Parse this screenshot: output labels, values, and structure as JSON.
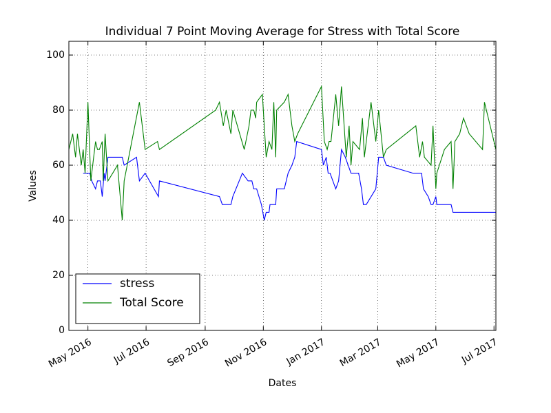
{
  "chart_data": {
    "type": "line",
    "title": "Individual 7 Point Moving Average for Stress with Total Score",
    "x_label": "Dates",
    "y_label": "Values",
    "xlim": [
      "2016-04-11",
      "2017-07-03"
    ],
    "xticks": [
      {
        "value": "2016-05-01",
        "label": "May 2016"
      },
      {
        "value": "2016-07-01",
        "label": "Jul 2016"
      },
      {
        "value": "2016-09-01",
        "label": "Sep 2016"
      },
      {
        "value": "2016-11-01",
        "label": "Nov 2016"
      },
      {
        "value": "2017-01-01",
        "label": "Jan 2017"
      },
      {
        "value": "2017-03-01",
        "label": "Mar 2017"
      },
      {
        "value": "2017-05-01",
        "label": "May 2017"
      },
      {
        "value": "2017-07-01",
        "label": "Jul 2017"
      }
    ],
    "ylim": [
      0,
      105
    ],
    "yticks": [
      0,
      20,
      40,
      60,
      80,
      100
    ],
    "grid": true,
    "legend": "lower left",
    "series": [
      {
        "name": "stress",
        "color": "#0000ff",
        "x": [
          "2016-04-26",
          "2016-05-03",
          "2016-05-05",
          "2016-05-09",
          "2016-05-11",
          "2016-05-14",
          "2016-05-16",
          "2016-05-18",
          "2016-05-19",
          "2016-05-22",
          "2016-06-06",
          "2016-06-08",
          "2016-06-21",
          "2016-06-24",
          "2016-06-30",
          "2016-07-14",
          "2016-07-15",
          "2016-09-16",
          "2016-09-19",
          "2016-09-28",
          "2016-09-30",
          "2016-10-10",
          "2016-10-16",
          "2016-10-20",
          "2016-10-22",
          "2016-10-25",
          "2016-10-30",
          "2016-11-02",
          "2016-11-04",
          "2016-11-07",
          "2016-11-08",
          "2016-11-14",
          "2016-11-15",
          "2016-11-23",
          "2016-11-27",
          "2016-12-01",
          "2016-12-04",
          "2016-12-06",
          "2017-01-01",
          "2017-01-03",
          "2017-01-06",
          "2017-01-08",
          "2017-01-10",
          "2017-01-16",
          "2017-01-19",
          "2017-01-22",
          "2017-01-26",
          "2017-01-29",
          "2017-02-01",
          "2017-02-09",
          "2017-02-12",
          "2017-02-14",
          "2017-02-17",
          "2017-02-27",
          "2017-03-02",
          "2017-03-07",
          "2017-03-10",
          "2017-04-07",
          "2017-04-16",
          "2017-04-18",
          "2017-04-23",
          "2017-04-26",
          "2017-04-28",
          "2017-05-01",
          "2017-05-02",
          "2017-05-17",
          "2017-05-19",
          "2017-07-03"
        ],
        "values": [
          57.1,
          57.1,
          54.3,
          51.4,
          54.3,
          54.3,
          48.6,
          57.1,
          54.3,
          62.9,
          62.9,
          60,
          62.9,
          54.3,
          57.1,
          48.6,
          54.3,
          48.6,
          45.7,
          45.7,
          48.6,
          57.1,
          54.3,
          54.3,
          51.4,
          51.4,
          45.7,
          40,
          42.9,
          42.9,
          45.7,
          45.7,
          51.4,
          51.4,
          57.1,
          60,
          62.9,
          68.6,
          65.7,
          60,
          62.9,
          57.1,
          57.1,
          51.4,
          54.3,
          65.7,
          62.9,
          60,
          57.1,
          57.1,
          51.4,
          45.7,
          45.7,
          51.4,
          62.9,
          62.9,
          60,
          57.1,
          57.1,
          51.4,
          48.6,
          45.7,
          45.7,
          48.6,
          45.7,
          45.7,
          42.9,
          42.9
        ]
      },
      {
        "name": "Total Score",
        "color": "#008000",
        "x": [
          "2016-04-11",
          "2016-04-15",
          "2016-04-18",
          "2016-04-20",
          "2016-04-24",
          "2016-04-26",
          "2016-04-28",
          "2016-05-01",
          "2016-05-04",
          "2016-05-09",
          "2016-05-11",
          "2016-05-13",
          "2016-05-16",
          "2016-05-17",
          "2016-05-19",
          "2016-05-22",
          "2016-05-27",
          "2016-06-01",
          "2016-06-06",
          "2016-06-08",
          "2016-06-24",
          "2016-06-30",
          "2016-07-13",
          "2016-07-15",
          "2016-09-12",
          "2016-09-16",
          "2016-09-20",
          "2016-09-23",
          "2016-09-28",
          "2016-09-30",
          "2016-10-12",
          "2016-10-17",
          "2016-10-19",
          "2016-10-22",
          "2016-10-24",
          "2016-10-25",
          "2016-10-31",
          "2016-11-04",
          "2016-11-07",
          "2016-11-10",
          "2016-11-12",
          "2016-11-14",
          "2016-11-15",
          "2016-11-23",
          "2016-11-27",
          "2016-12-01",
          "2016-12-04",
          "2016-12-07",
          "2017-01-01",
          "2017-01-04",
          "2017-01-07",
          "2017-01-09",
          "2017-01-11",
          "2017-01-16",
          "2017-01-19",
          "2017-01-22",
          "2017-01-27",
          "2017-01-30",
          "2017-02-01",
          "2017-02-03",
          "2017-02-10",
          "2017-02-13",
          "2017-02-15",
          "2017-02-22",
          "2017-02-27",
          "2017-03-02",
          "2017-03-07",
          "2017-03-10",
          "2017-04-10",
          "2017-04-14",
          "2017-04-17",
          "2017-04-19",
          "2017-04-26",
          "2017-04-28",
          "2017-05-01",
          "2017-05-02",
          "2017-05-10",
          "2017-05-17",
          "2017-05-19",
          "2017-05-21",
          "2017-05-26",
          "2017-05-30",
          "2017-06-05",
          "2017-06-19",
          "2017-06-21",
          "2017-07-03"
        ],
        "values": [
          65.7,
          71.4,
          62.9,
          71.4,
          60,
          65.7,
          57.1,
          82.9,
          54.3,
          68.6,
          65.7,
          65.7,
          68.6,
          54.3,
          71.4,
          54.3,
          57.1,
          60,
          40,
          54.3,
          82.9,
          65.7,
          68.6,
          65.7,
          80,
          82.9,
          74.3,
          80,
          71.4,
          80,
          65.7,
          74.3,
          80,
          80,
          77.1,
          82.9,
          85.7,
          62.9,
          68.6,
          65.7,
          82.9,
          62.9,
          80,
          82.9,
          85.7,
          74.3,
          68.6,
          71.4,
          88.6,
          68.6,
          65.7,
          68.6,
          68.6,
          85.7,
          74.3,
          88.6,
          62.9,
          74.3,
          60,
          68.6,
          65.7,
          77.1,
          62.9,
          82.9,
          68.6,
          80,
          62.9,
          65.7,
          74.3,
          62.9,
          68.6,
          62.9,
          60,
          74.3,
          51.4,
          57.1,
          65.7,
          68.6,
          51.4,
          68.6,
          71.4,
          77.1,
          71.4,
          65.7,
          82.9,
          65.7
        ]
      }
    ]
  }
}
